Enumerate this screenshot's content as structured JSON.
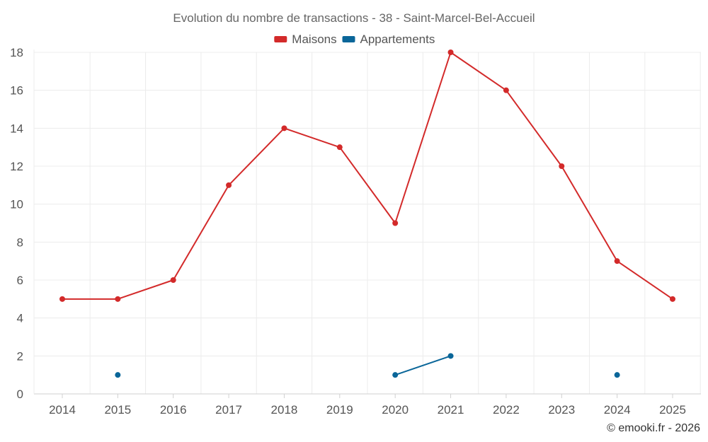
{
  "chart_data": {
    "type": "line",
    "title": "Evolution du nombre de transactions - 38 - Saint-Marcel-Bel-Accueil",
    "categories": [
      "2014",
      "2015",
      "2016",
      "2017",
      "2018",
      "2019",
      "2020",
      "2021",
      "2022",
      "2023",
      "2024",
      "2025"
    ],
    "ylim": [
      0,
      18
    ],
    "yticks": [
      0,
      2,
      4,
      6,
      8,
      10,
      12,
      14,
      16,
      18
    ],
    "grid": true,
    "legend_position": "top-center",
    "series": [
      {
        "name": "Maisons",
        "color": "#d32a2a",
        "values": [
          5,
          5,
          6,
          11,
          14,
          13,
          9,
          18,
          16,
          12,
          7,
          5
        ]
      },
      {
        "name": "Appartements",
        "color": "#0a6699",
        "values": [
          null,
          1,
          null,
          null,
          null,
          null,
          1,
          2,
          null,
          null,
          1,
          null
        ]
      }
    ],
    "credit": "© emooki.fr - 2026"
  }
}
